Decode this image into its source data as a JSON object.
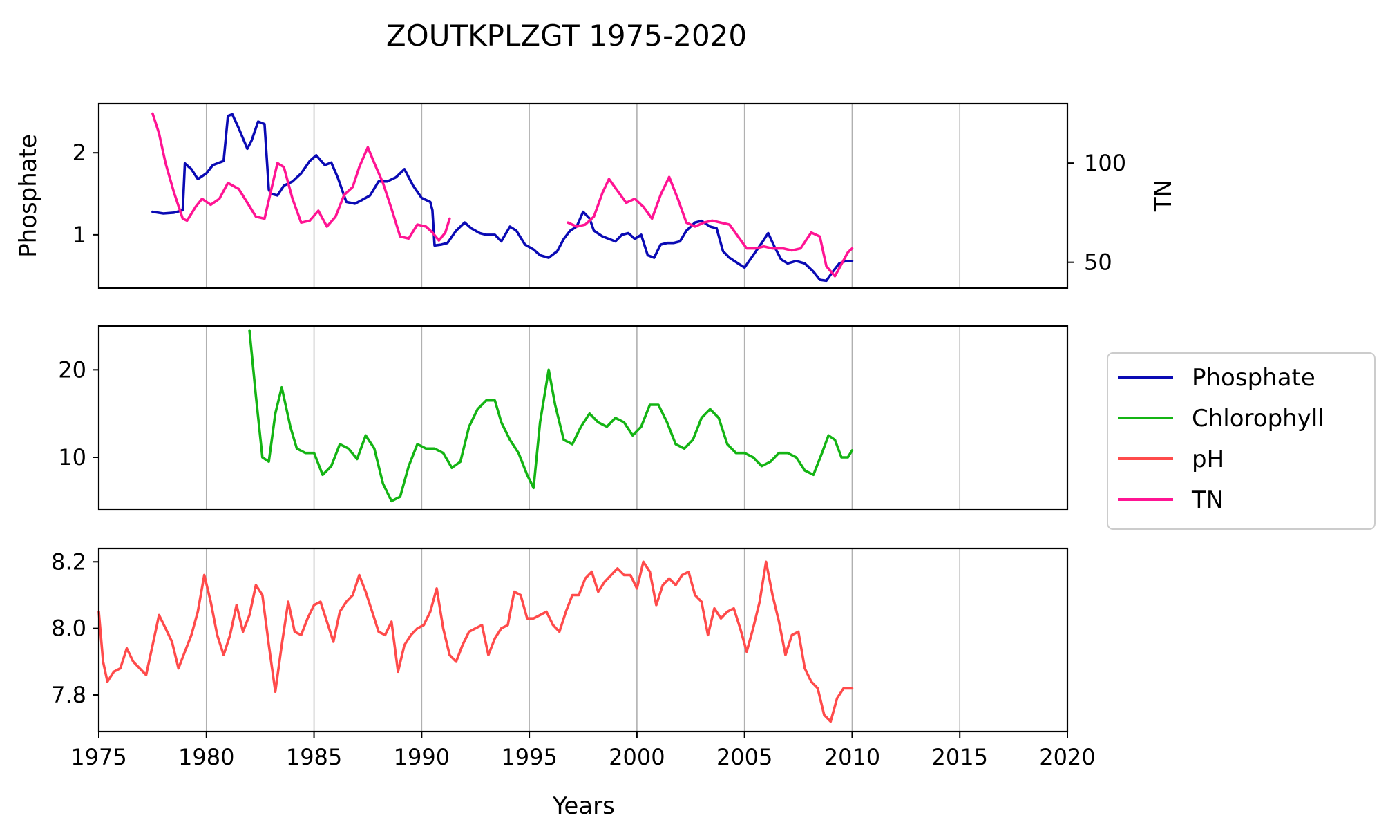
{
  "title": "ZOUTKPLZGT 1975-2020",
  "xlabel": "Years",
  "colors": {
    "phosphate": "#0a0ab4",
    "chlorophyll": "#14b414",
    "ph": "#ff4b4b",
    "tn": "#ff1493",
    "grid": "#b0b0b0"
  },
  "legend": {
    "items": [
      {
        "label": "Phosphate",
        "color": "#0a0ab4"
      },
      {
        "label": "Chlorophyll",
        "color": "#14b414"
      },
      {
        "label": "pH",
        "color": "#ff4b4b"
      },
      {
        "label": "TN",
        "color": "#ff1493"
      }
    ]
  },
  "chart_data": [
    {
      "type": "line",
      "panel": "top",
      "xlim": [
        1975,
        2020
      ],
      "x_ticks": [
        "1975",
        "1980",
        "1985",
        "1990",
        "1995",
        "2000",
        "2005",
        "2010",
        "2015",
        "2020"
      ],
      "ylabel": "Phosphate",
      "ylim": [
        0.35,
        2.6
      ],
      "y_ticks": [
        1,
        2
      ],
      "y2label": "TN",
      "y2lim": [
        37,
        130
      ],
      "y2_ticks": [
        50,
        100
      ],
      "grid": "vertical",
      "series": [
        {
          "name": "Phosphate",
          "axis": "left",
          "x": [
            1977.5,
            1978.0,
            1978.5,
            1978.9,
            1979.0,
            1979.3,
            1979.6,
            1980.0,
            1980.3,
            1980.8,
            1981.0,
            1981.2,
            1981.5,
            1981.9,
            1982.1,
            1982.4,
            1982.7,
            1982.9,
            1983.0,
            1983.3,
            1983.6,
            1984.0,
            1984.4,
            1984.8,
            1985.1,
            1985.5,
            1985.8,
            1986.1,
            1986.5,
            1986.9,
            1987.2,
            1987.6,
            1988.0,
            1988.4,
            1988.8,
            1989.2,
            1989.6,
            1990.0,
            1990.4,
            1990.5,
            1990.6,
            1990.9,
            1991.2,
            1991.6,
            1992.0,
            1992.3,
            1992.7,
            1993.0,
            1993.4,
            1993.7,
            1994.1,
            1994.4,
            1994.8,
            1995.2,
            1995.5,
            1995.9,
            1996.3,
            1996.6,
            1996.9,
            1997.2,
            1997.5,
            1997.8,
            1998.0,
            1998.4,
            1998.7,
            1999.0,
            1999.3,
            1999.6,
            1999.9,
            2000.2,
            2000.5,
            2000.8,
            2001.1,
            2001.4,
            2001.7,
            2002.0,
            2002.3,
            2002.7,
            2003.0,
            2003.4,
            2003.7,
            2004.0,
            2004.3,
            2004.7,
            2005.0,
            2005.4,
            2005.8,
            2006.1,
            2006.4,
            2006.7,
            2007.0,
            2007.4,
            2007.8,
            2008.2,
            2008.5,
            2008.8,
            2009.1,
            2009.4,
            2009.7,
            2010.0
          ],
          "y": [
            1.28,
            1.26,
            1.27,
            1.3,
            1.87,
            1.8,
            1.68,
            1.75,
            1.85,
            1.9,
            2.45,
            2.47,
            2.3,
            2.05,
            2.15,
            2.38,
            2.35,
            1.55,
            1.5,
            1.48,
            1.6,
            1.65,
            1.75,
            1.9,
            1.97,
            1.85,
            1.88,
            1.7,
            1.4,
            1.38,
            1.42,
            1.48,
            1.65,
            1.65,
            1.7,
            1.8,
            1.6,
            1.45,
            1.4,
            1.3,
            0.87,
            0.88,
            0.9,
            1.05,
            1.15,
            1.08,
            1.02,
            1.0,
            1.0,
            0.92,
            1.1,
            1.05,
            0.88,
            0.82,
            0.75,
            0.72,
            0.8,
            0.95,
            1.05,
            1.1,
            1.28,
            1.2,
            1.05,
            0.98,
            0.95,
            0.92,
            1.0,
            1.02,
            0.95,
            1.0,
            0.75,
            0.72,
            0.88,
            0.9,
            0.9,
            0.92,
            1.05,
            1.15,
            1.17,
            1.1,
            1.08,
            0.8,
            0.72,
            0.65,
            0.6,
            0.75,
            0.9,
            1.02,
            0.85,
            0.7,
            0.65,
            0.68,
            0.65,
            0.55,
            0.45,
            0.44,
            0.55,
            0.65,
            0.68,
            0.68
          ]
        },
        {
          "name": "TN",
          "axis": "right",
          "x": [
            1977.5,
            1977.8,
            1978.1,
            1978.5,
            1978.9,
            1979.1,
            1979.5,
            1979.8,
            1980.2,
            1980.6,
            1981.0,
            1981.5,
            1981.9,
            1982.3,
            1982.7,
            1983.0,
            1983.3,
            1983.6,
            1984.0,
            1984.4,
            1984.8,
            1985.2,
            1985.6,
            1986.0,
            1986.4,
            1986.8,
            1987.1,
            1987.5,
            1987.8,
            1988.2,
            1988.6,
            1989.0,
            1989.4,
            1989.8,
            1990.2,
            1990.5,
            1990.8,
            1991.1,
            1991.3
          ],
          "y": [
            125,
            115,
            100,
            85,
            72,
            71,
            78,
            82,
            79,
            82,
            90,
            87,
            80,
            73,
            72,
            86,
            100,
            98,
            82,
            70,
            71,
            76,
            68,
            73,
            84,
            88,
            98,
            108,
            100,
            90,
            77,
            63,
            62,
            69,
            68,
            65,
            61,
            65,
            72
          ]
        },
        {
          "name": "TN",
          "axis": "right",
          "x": [
            1996.8,
            1997.2,
            1997.6,
            1998.0,
            1998.4,
            1998.7,
            1999.1,
            1999.5,
            1999.9,
            2000.3,
            2000.7,
            2001.1,
            2001.5,
            2001.9,
            2002.3,
            2002.7,
            2003.1,
            2003.5,
            2003.9,
            2004.3,
            2004.7,
            2005.1,
            2005.5,
            2005.9,
            2006.3,
            2006.8,
            2007.2,
            2007.6,
            2008.1,
            2008.5,
            2008.8,
            2009.2,
            2009.5,
            2009.8,
            2010.0
          ],
          "y": [
            70,
            68,
            69,
            73,
            85,
            92,
            86,
            80,
            82,
            78,
            72,
            84,
            93,
            82,
            70,
            68,
            70,
            71,
            70,
            69,
            63,
            57,
            57,
            58,
            57,
            57,
            56,
            57,
            65,
            63,
            48,
            43,
            49,
            55,
            57
          ]
        }
      ]
    },
    {
      "type": "line",
      "panel": "middle",
      "xlim": [
        1975,
        2020
      ],
      "ylim": [
        4,
        25
      ],
      "y_ticks": [
        10,
        20
      ],
      "grid": "vertical",
      "series": [
        {
          "name": "Chlorophyll",
          "x": [
            1982.0,
            1982.3,
            1982.6,
            1982.9,
            1983.2,
            1983.5,
            1983.9,
            1984.2,
            1984.6,
            1985.0,
            1985.4,
            1985.8,
            1986.2,
            1986.6,
            1987.0,
            1987.4,
            1987.8,
            1988.2,
            1988.6,
            1989.0,
            1989.4,
            1989.8,
            1990.2,
            1990.6,
            1991.0,
            1991.4,
            1991.8,
            1992.2,
            1992.6,
            1993.0,
            1993.4,
            1993.7,
            1994.1,
            1994.5,
            1994.9,
            1995.2,
            1995.5,
            1995.9,
            1996.2,
            1996.6,
            1997.0,
            1997.4,
            1997.8,
            1998.2,
            1998.6,
            1999.0,
            1999.4,
            1999.8,
            2000.2,
            2000.6,
            2001.0,
            2001.4,
            2001.8,
            2002.2,
            2002.6,
            2003.0,
            2003.4,
            2003.8,
            2004.2,
            2004.6,
            2005.0,
            2005.4,
            2005.8,
            2006.2,
            2006.6,
            2007.0,
            2007.4,
            2007.8,
            2008.2,
            2008.6,
            2008.9,
            2009.2,
            2009.5,
            2009.8,
            2010.0
          ],
          "y": [
            24.5,
            17,
            10,
            9.5,
            15,
            18,
            13.5,
            11,
            10.5,
            10.5,
            8,
            9,
            11.5,
            11,
            9.8,
            12.5,
            11,
            7,
            5,
            5.5,
            9,
            11.5,
            11,
            11,
            10.5,
            8.8,
            9.5,
            13.5,
            15.5,
            16.5,
            16.5,
            14,
            12,
            10.5,
            8,
            6.5,
            14,
            20,
            16,
            12,
            11.5,
            13.5,
            15,
            14,
            13.5,
            14.5,
            14,
            12.5,
            13.5,
            16,
            16,
            14,
            11.5,
            11,
            12,
            14.5,
            15.5,
            14.5,
            11.5,
            10.5,
            10.5,
            10,
            9,
            9.5,
            10.5,
            10.5,
            10,
            8.5,
            8,
            10.5,
            12.5,
            12,
            10,
            10,
            10.8
          ]
        }
      ]
    },
    {
      "type": "line",
      "panel": "bottom",
      "xlim": [
        1975,
        2020
      ],
      "ylim": [
        7.69,
        8.24
      ],
      "y_ticks": [
        "7.8",
        "8.0",
        "8.2"
      ],
      "grid": "vertical",
      "series": [
        {
          "name": "pH",
          "x": [
            1975.0,
            1975.2,
            1975.4,
            1975.7,
            1976.0,
            1976.3,
            1976.6,
            1976.9,
            1977.2,
            1977.5,
            1977.8,
            1978.1,
            1978.4,
            1978.7,
            1979.0,
            1979.3,
            1979.6,
            1979.9,
            1980.2,
            1980.5,
            1980.8,
            1981.1,
            1981.4,
            1981.7,
            1982.0,
            1982.3,
            1982.6,
            1982.9,
            1983.2,
            1983.5,
            1983.8,
            1984.1,
            1984.4,
            1984.7,
            1985.0,
            1985.3,
            1985.6,
            1985.9,
            1986.2,
            1986.5,
            1986.8,
            1987.1,
            1987.4,
            1987.7,
            1988.0,
            1988.3,
            1988.6,
            1988.9,
            1989.2,
            1989.5,
            1989.8,
            1990.1,
            1990.4,
            1990.7,
            1991.0,
            1991.3,
            1991.6,
            1991.9,
            1992.2,
            1992.5,
            1992.8,
            1993.1,
            1993.4,
            1993.7,
            1994.0,
            1994.3,
            1994.6,
            1994.9,
            1995.2,
            1995.5,
            1995.8,
            1996.1,
            1996.4,
            1996.7,
            1997.0,
            1997.3,
            1997.6,
            1997.9,
            1998.2,
            1998.5,
            1998.8,
            1999.1,
            1999.4,
            1999.7,
            2000.0,
            2000.3,
            2000.6,
            2000.9,
            2001.2,
            2001.5,
            2001.8,
            2002.1,
            2002.4,
            2002.7,
            2003.0,
            2003.3,
            2003.6,
            2003.9,
            2004.2,
            2004.5,
            2004.8,
            2005.1,
            2005.4,
            2005.7,
            2006.0,
            2006.3,
            2006.6,
            2006.9,
            2007.2,
            2007.5,
            2007.8,
            2008.1,
            2008.4,
            2008.7,
            2009.0,
            2009.3,
            2009.6,
            2009.8,
            2010.0
          ],
          "y": [
            8.05,
            7.9,
            7.84,
            7.87,
            7.88,
            7.94,
            7.9,
            7.88,
            7.86,
            7.95,
            8.04,
            8.0,
            7.96,
            7.88,
            7.93,
            7.98,
            8.05,
            8.16,
            8.08,
            7.98,
            7.92,
            7.98,
            8.07,
            7.99,
            8.04,
            8.13,
            8.1,
            7.95,
            7.81,
            7.95,
            8.08,
            7.99,
            7.98,
            8.03,
            8.07,
            8.08,
            8.02,
            7.96,
            8.05,
            8.08,
            8.1,
            8.16,
            8.11,
            8.05,
            7.99,
            7.98,
            8.02,
            7.87,
            7.95,
            7.98,
            8.0,
            8.01,
            8.05,
            8.12,
            8.0,
            7.92,
            7.9,
            7.95,
            7.99,
            8.0,
            8.01,
            7.92,
            7.97,
            8.0,
            8.01,
            8.11,
            8.1,
            8.03,
            8.03,
            8.04,
            8.05,
            8.01,
            7.99,
            8.05,
            8.1,
            8.1,
            8.15,
            8.17,
            8.11,
            8.14,
            8.16,
            8.18,
            8.16,
            8.16,
            8.12,
            8.2,
            8.17,
            8.07,
            8.13,
            8.15,
            8.13,
            8.16,
            8.17,
            8.1,
            8.08,
            7.98,
            8.06,
            8.03,
            8.05,
            8.06,
            8.0,
            7.93,
            8.0,
            8.08,
            8.2,
            8.1,
            8.02,
            7.92,
            7.98,
            7.99,
            7.88,
            7.84,
            7.82,
            7.74,
            7.72,
            7.79,
            7.82,
            7.82,
            7.82
          ]
        }
      ]
    }
  ]
}
